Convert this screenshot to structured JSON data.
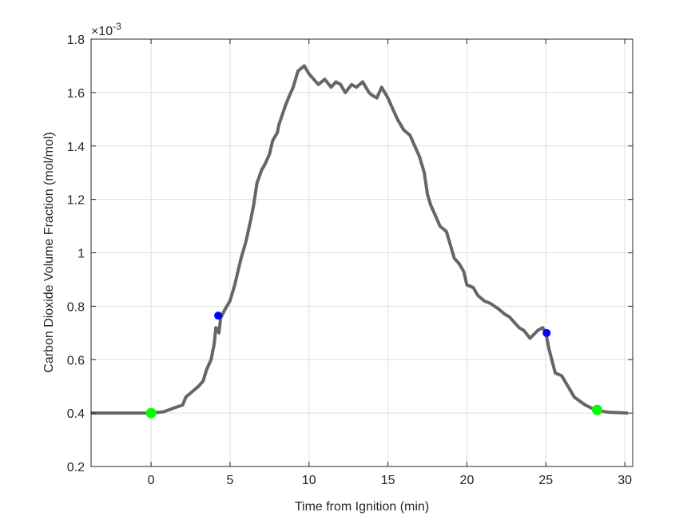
{
  "chart_data": {
    "type": "line",
    "title": "",
    "xlabel": "Time from Ignition (min)",
    "ylabel": "Carbon Dioxide Volume Fraction (mol/mol)",
    "y_multiplier": "×10",
    "y_multiplier_exp": "-3",
    "xlim": [
      -3.8,
      30.5
    ],
    "ylim": [
      0.2,
      1.8
    ],
    "xticks": [
      0,
      5,
      10,
      15,
      20,
      25,
      30
    ],
    "yticks": [
      0.2,
      0.4,
      0.6,
      0.8,
      1,
      1.2,
      1.4,
      1.6,
      1.8
    ],
    "grid": true,
    "colors": {
      "line": "#666666",
      "start_end_markers": "#00ff00",
      "mid_markers": "#0000ff"
    },
    "series": [
      {
        "x": [
          -3.8,
          -1,
          0,
          0.8,
          1.5,
          2,
          2.2,
          2.6,
          3,
          3.3,
          3.5,
          3.8,
          4,
          4.1,
          4.3,
          4.4,
          4.7,
          5,
          5.3,
          5.5,
          5.7,
          6,
          6.3,
          6.5,
          6.7,
          7,
          7.2,
          7.5,
          7.7,
          8,
          8.1,
          8.5,
          8.7,
          9,
          9.2,
          9.3,
          9.7,
          10,
          10.3,
          10.6,
          11,
          11.4,
          11.7,
          12,
          12.3,
          12.7,
          13,
          13.4,
          13.8,
          14,
          14.3,
          14.6,
          15,
          15.3,
          15.6,
          16,
          16.4,
          16.7,
          17,
          17.3,
          17.5,
          17.7,
          18,
          18.3,
          18.7,
          19,
          19.2,
          19.5,
          19.8,
          20,
          20.4,
          20.7,
          21.1,
          21.5,
          22,
          22.4,
          22.7,
          23,
          23.3,
          23.6,
          24,
          24.5,
          24.8,
          25,
          25.2,
          25.6,
          26,
          26.4,
          26.8,
          27.5,
          28.2,
          29,
          30.2
        ],
        "y": [
          0.4,
          0.4,
          0.4,
          0.405,
          0.42,
          0.43,
          0.46,
          0.48,
          0.5,
          0.52,
          0.56,
          0.6,
          0.66,
          0.72,
          0.7,
          0.755,
          0.79,
          0.82,
          0.88,
          0.93,
          0.98,
          1.04,
          1.12,
          1.18,
          1.26,
          1.31,
          1.33,
          1.37,
          1.42,
          1.45,
          1.48,
          1.55,
          1.58,
          1.62,
          1.66,
          1.68,
          1.7,
          1.67,
          1.65,
          1.63,
          1.65,
          1.62,
          1.64,
          1.63,
          1.6,
          1.63,
          1.62,
          1.64,
          1.6,
          1.59,
          1.58,
          1.62,
          1.58,
          1.54,
          1.5,
          1.46,
          1.44,
          1.4,
          1.36,
          1.3,
          1.22,
          1.18,
          1.14,
          1.1,
          1.08,
          1.02,
          0.98,
          0.96,
          0.93,
          0.88,
          0.87,
          0.84,
          0.82,
          0.81,
          0.79,
          0.77,
          0.76,
          0.74,
          0.72,
          0.71,
          0.68,
          0.71,
          0.72,
          0.7,
          0.64,
          0.55,
          0.54,
          0.5,
          0.46,
          0.43,
          0.41,
          0.403,
          0.4
        ]
      }
    ],
    "markers": [
      {
        "kind": "start",
        "x": 0,
        "y": 0.4
      },
      {
        "kind": "mid",
        "x": 4.25,
        "y": 0.765
      },
      {
        "kind": "mid",
        "x": 25.05,
        "y": 0.7
      },
      {
        "kind": "end",
        "x": 28.25,
        "y": 0.412
      }
    ]
  }
}
